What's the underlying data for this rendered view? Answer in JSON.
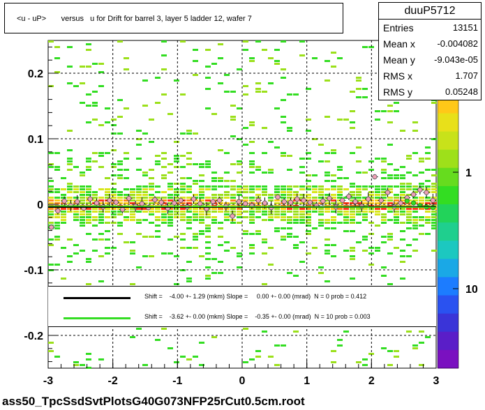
{
  "title": "<u - uP>       versus   u for Drift for barrel 3, layer 5 ladder 12, wafer 7",
  "stats": {
    "name": "duuP5712",
    "rows": [
      {
        "label": "Entries",
        "value": "13151"
      },
      {
        "label": "Mean x",
        "value": "-0.004082"
      },
      {
        "label": "Mean y",
        "value": "-9.043e-05"
      },
      {
        "label": "RMS x",
        "value": "1.707"
      },
      {
        "label": "RMS y",
        "value": "0.05248"
      }
    ]
  },
  "fit_legend": [
    {
      "text": "Shift =    -4.00 +- 1.29 (mkm) Slope =     0.00 +- 0.00 (mrad)  N = 0 prob = 0.412",
      "color": "#000000"
    },
    {
      "text": "Shift =    -3.62 +- 0.00 (mkm) Slope =    -0.35 +- 0.00 (mrad)  N = 10 prob = 0.003",
      "color": "#33dd22"
    }
  ],
  "footer": "ass50_TpcSsdSvtPlotsG40G073NFP25rCut0.5cm.root",
  "chart_data": {
    "type": "heatmap",
    "x_range": [
      -3,
      3
    ],
    "y_range": [
      -0.25,
      0.25
    ],
    "x_ticks": [
      "-3",
      "-2",
      "-1",
      "0",
      "1",
      "2",
      "3"
    ],
    "y_ticks": [
      "-0.2",
      "-0.1",
      "0",
      "0.1",
      "0.2"
    ],
    "z_scale": "log",
    "z_ticks": [
      "1",
      "10"
    ],
    "z_tick_partial": "0",
    "grid": true,
    "profile": {
      "x": [
        -2.95,
        -2.85,
        -2.75,
        -2.65,
        -2.55,
        -2.45,
        -2.35,
        -2.25,
        -2.15,
        -2.05,
        -1.95,
        -1.85,
        -1.75,
        -1.65,
        -1.55,
        -1.45,
        -1.35,
        -1.25,
        -1.15,
        -1.05,
        -0.95,
        -0.85,
        -0.75,
        -0.65,
        -0.55,
        -0.45,
        -0.35,
        -0.25,
        -0.15,
        -0.05,
        0.05,
        0.15,
        0.25,
        0.35,
        0.45,
        0.55,
        0.65,
        0.75,
        0.85,
        0.95,
        1.05,
        1.15,
        1.25,
        1.35,
        1.45,
        1.55,
        1.65,
        1.75,
        1.85,
        1.95,
        2.05,
        2.15,
        2.25,
        2.35,
        2.45,
        2.55,
        2.65,
        2.75,
        2.85,
        2.95
      ],
      "y": [
        -0.035,
        -0.01,
        0.005,
        -0.002,
        0.004,
        -0.006,
        0.008,
        0.002,
        -0.004,
        0.006,
        0.003,
        -0.008,
        0.009,
        -0.003,
        0.001,
        -0.005,
        0.007,
        0.003,
        -0.006,
        0.002,
        0.006,
        -0.004,
        0.008,
        0.001,
        -0.007,
        0.004,
        0.006,
        -0.003,
        -0.018,
        0.004,
        0.001,
        -0.002,
        0.006,
        0.002,
        -0.005,
        0.011,
        0.004,
        0.003,
        0.008,
        0.006,
        0.003,
        -0.002,
        0.005,
        0.009,
        -0.004,
        0.006,
        0.012,
        0.004,
        -0.003,
        0.008,
        0.042,
        0.006,
        0.018,
        -0.004,
        0.002,
        0.01,
        0.015,
        0.022,
        0.018,
        0.006
      ]
    },
    "green_profile": {
      "x": [
        2.55,
        2.65,
        2.75,
        2.85,
        2.95
      ],
      "y": [
        0.005,
        0.002,
        -0.002,
        -0.004,
        -0.005
      ]
    },
    "fit_black": {
      "shift": -0.004,
      "slope": 0.0
    },
    "fit_green": {
      "shift": -0.00362,
      "slope": -0.00035
    }
  }
}
